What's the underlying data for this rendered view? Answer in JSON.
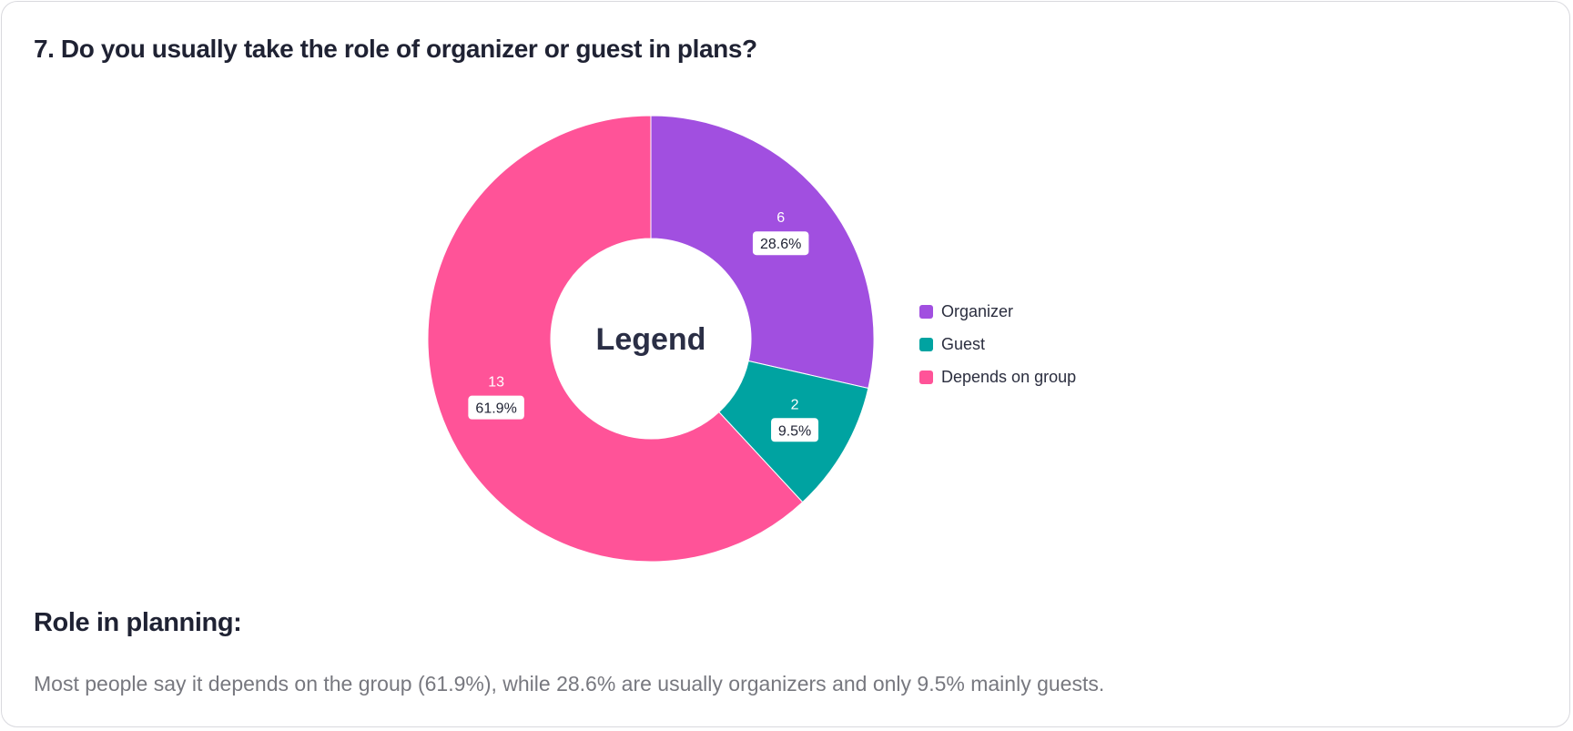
{
  "question": {
    "title": "7. Do you usually take the role of organizer or guest in plans?"
  },
  "chart_data": {
    "type": "pie",
    "variant": "donut",
    "title": "7. Do you usually take the role of organizer or guest in plans?",
    "center_label": "Legend",
    "legend_position": "right",
    "slices": [
      {
        "label": "Organizer",
        "value": 6,
        "percent_label": "28.6%",
        "color": "#a14fe0"
      },
      {
        "label": "Guest",
        "value": 2,
        "percent_label": "9.5%",
        "color": "#00a3a1"
      },
      {
        "label": "Depends on group",
        "value": 13,
        "percent_label": "61.9%",
        "color": "#ff5398"
      }
    ]
  },
  "section": {
    "heading": "Role in planning:",
    "summary": "Most people say it depends on the group (61.9%), while 28.6% are usually organizers and only 9.5% mainly guests."
  }
}
